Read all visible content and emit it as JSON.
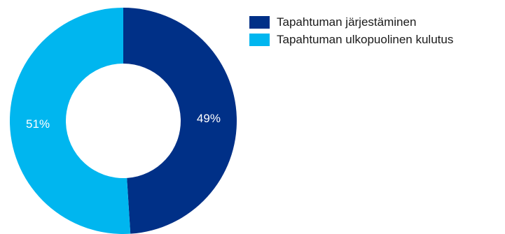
{
  "chart_data": {
    "type": "pie",
    "donut": true,
    "title": "",
    "categories": [
      "Tapahtuman järjestäminen",
      "Tapahtuman ulkopuolinen kulutus"
    ],
    "values": [
      49,
      51
    ],
    "data_labels": [
      "49%",
      "51%"
    ],
    "colors": [
      "#003087",
      "#00b6ef"
    ],
    "label_color": "#ffffff",
    "legend_placement": "top-right"
  }
}
